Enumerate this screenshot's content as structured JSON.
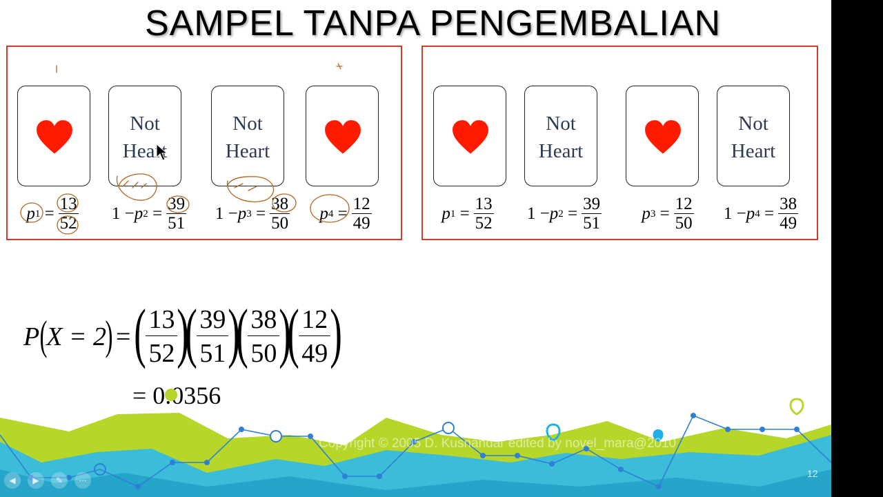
{
  "title": "SAMPEL TANPA PENGEMBALIAN",
  "left_panel": {
    "cards": [
      {
        "type": "heart",
        "text": ""
      },
      {
        "type": "text",
        "text": "Not Heart"
      },
      {
        "type": "text",
        "text": "Not Heart"
      },
      {
        "type": "heart",
        "text": ""
      }
    ],
    "formulas": [
      {
        "prefix": "",
        "var": "p",
        "sub": "1",
        "num": "13",
        "den": "52"
      },
      {
        "prefix": "1 − ",
        "var": "p",
        "sub": "2",
        "num": "39",
        "den": "51"
      },
      {
        "prefix": "1 − ",
        "var": "p",
        "sub": "3",
        "num": "38",
        "den": "50"
      },
      {
        "prefix": "",
        "var": "p",
        "sub": "4",
        "num": "12",
        "den": "49"
      }
    ]
  },
  "right_panel": {
    "cards": [
      {
        "type": "heart",
        "text": ""
      },
      {
        "type": "text",
        "text": "Not Heart"
      },
      {
        "type": "heart",
        "text": ""
      },
      {
        "type": "text",
        "text": "Not Heart"
      }
    ],
    "formulas": [
      {
        "prefix": "",
        "var": "p",
        "sub": "1",
        "num": "13",
        "den": "52"
      },
      {
        "prefix": "1 − ",
        "var": "p",
        "sub": "2",
        "num": "39",
        "den": "51"
      },
      {
        "prefix": "",
        "var": "p",
        "sub": "3",
        "num": "12",
        "den": "50"
      },
      {
        "prefix": "1 − ",
        "var": "p",
        "sub": "4",
        "num": "38",
        "den": "49"
      }
    ]
  },
  "main_equation": {
    "lhs": "P",
    "lhs_arg": "X = 2",
    "factors": [
      {
        "num": "13",
        "den": "52"
      },
      {
        "num": "39",
        "den": "51"
      },
      {
        "num": "38",
        "den": "50"
      },
      {
        "num": "12",
        "den": "49"
      }
    ],
    "result": "= 0.0356"
  },
  "copyright": "Copyright © 2005 D. Kusnandar edited by novel_mara@2010",
  "page_number": "12",
  "colors": {
    "heart": "#ff1a00",
    "panel_border": "#d33a2a",
    "card_text": "#2c3a56",
    "ink": "#b5651d"
  },
  "icons": {
    "cursor": "mouse-pointer-icon"
  }
}
